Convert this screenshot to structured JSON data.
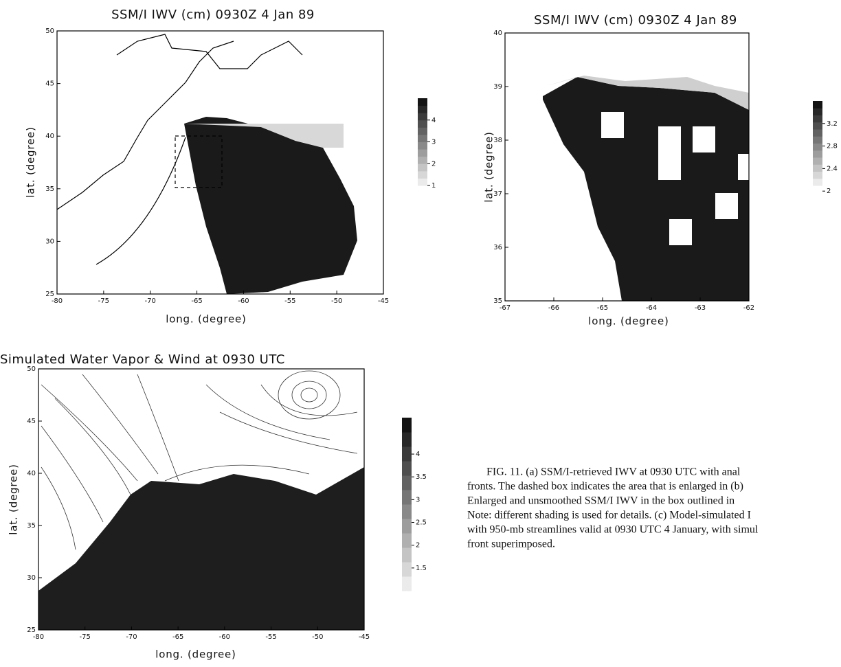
{
  "panels": [
    {
      "title": "SSM/I IWV (cm) 0930Z 4 Jan 89",
      "xlabel": "long. (degree)",
      "ylabel": "lat. (degree)",
      "xlim": [
        -80,
        -45
      ],
      "ylim": [
        25,
        50
      ],
      "xticks": [
        -80,
        -75,
        -70,
        -65,
        -60,
        -55,
        -50,
        -45
      ],
      "yticks": [
        25,
        30,
        35,
        40,
        45,
        50
      ],
      "colorbar_lim": [
        1,
        5
      ],
      "colorbar_ticks": [
        1,
        2,
        3,
        4
      ]
    },
    {
      "title": "SSM/I IWV (cm) 0930Z 4 Jan 89",
      "xlabel": "long. (degree)",
      "ylabel": "lat. (degree)",
      "xlim": [
        -67,
        -62
      ],
      "ylim": [
        35,
        40
      ],
      "xticks": [
        -67,
        -66,
        -65,
        -64,
        -63,
        -62
      ],
      "yticks": [
        35,
        36,
        37,
        38,
        39,
        40
      ],
      "colorbar_lim": [
        2.1,
        3.6
      ],
      "colorbar_ticks": [
        2,
        2.4,
        2.8,
        3.2
      ]
    },
    {
      "title": "Simulated Water Vapor & Wind  at 0930 UTC",
      "xlabel": "long. (degree)",
      "ylabel": "lat. (degree)",
      "xlim": [
        -80,
        -45
      ],
      "ylim": [
        25,
        50
      ],
      "xticks": [
        -80,
        -75,
        -70,
        -65,
        -60,
        -55,
        -50,
        -45
      ],
      "yticks": [
        25,
        30,
        35,
        40,
        45,
        50
      ],
      "colorbar_lim": [
        1,
        4.8
      ],
      "colorbar_ticks": [
        1.5,
        2,
        2.5,
        3,
        3.5,
        4
      ]
    }
  ],
  "caption": [
    "FIG. 11. (a) SSM/I-retrieved IWV at 0930 UTC with anal",
    "fronts. The dashed box indicates the area that is enlarged in (b)",
    "Enlarged and unsmoothed SSM/I IWV in the box outlined in",
    "Note: different shading is used for details. (c) Model-simulated I",
    "with 950-mb streamlines valid at 0930 UTC 4 January, with simul",
    "front superimposed."
  ]
}
